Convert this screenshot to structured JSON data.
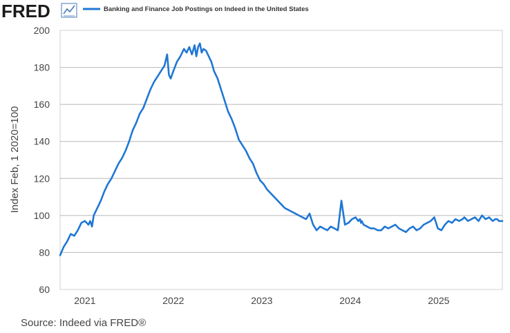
{
  "header": {
    "logo_text": "FRED",
    "logo_icon": "trend-line-icon",
    "legend_label": "Banking and Finance Job Postings on Indeed in the United States"
  },
  "footer": {
    "source": "Source: Indeed via FRED®"
  },
  "colors": {
    "series": "#1f77d4",
    "logo": "#1a1a1a",
    "grid": "#b8b8b8",
    "axis_text": "#444444",
    "plot_border": "#d0d0d0"
  },
  "chart_data": {
    "type": "line",
    "ylabel": "Index Feb, 1 2020=100",
    "ylim": [
      60,
      200
    ],
    "xlim": [
      2020.72,
      2025.72
    ],
    "y_ticks": [
      60,
      80,
      100,
      120,
      140,
      160,
      180,
      200
    ],
    "x_ticks": [
      {
        "value": 2021,
        "label": "2021"
      },
      {
        "value": 2022,
        "label": "2022"
      },
      {
        "value": 2023,
        "label": "2023"
      },
      {
        "value": 2024,
        "label": "2024"
      },
      {
        "value": 2025,
        "label": "2025"
      }
    ],
    "grid": true,
    "series": [
      {
        "name": "Banking and Finance Job Postings on Indeed in the United States",
        "x": [
          2020.72,
          2020.76,
          2020.8,
          2020.84,
          2020.88,
          2020.92,
          2020.96,
          2021.0,
          2021.04,
          2021.06,
          2021.08,
          2021.1,
          2021.14,
          2021.18,
          2021.22,
          2021.26,
          2021.3,
          2021.34,
          2021.38,
          2021.42,
          2021.46,
          2021.5,
          2021.54,
          2021.58,
          2021.62,
          2021.66,
          2021.7,
          2021.74,
          2021.78,
          2021.82,
          2021.86,
          2021.9,
          2021.93,
          2021.95,
          2021.97,
          2022.0,
          2022.04,
          2022.08,
          2022.12,
          2022.15,
          2022.18,
          2022.21,
          2022.24,
          2022.26,
          2022.28,
          2022.3,
          2022.32,
          2022.34,
          2022.37,
          2022.4,
          2022.43,
          2022.46,
          2022.5,
          2022.54,
          2022.58,
          2022.62,
          2022.66,
          2022.7,
          2022.74,
          2022.78,
          2022.82,
          2022.86,
          2022.9,
          2022.94,
          2022.98,
          2023.02,
          2023.06,
          2023.1,
          2023.14,
          2023.18,
          2023.22,
          2023.26,
          2023.3,
          2023.34,
          2023.38,
          2023.42,
          2023.46,
          2023.5,
          2023.54,
          2023.58,
          2023.62,
          2023.66,
          2023.7,
          2023.74,
          2023.78,
          2023.82,
          2023.86,
          2023.9,
          2023.94,
          2023.98,
          2024.02,
          2024.06,
          2024.09,
          2024.11,
          2024.12,
          2024.13,
          2024.15,
          2024.19,
          2024.23,
          2024.27,
          2024.31,
          2024.35,
          2024.39,
          2024.43,
          2024.47,
          2024.51,
          2024.55,
          2024.59,
          2024.63,
          2024.67,
          2024.71,
          2024.75,
          2024.79,
          2024.83,
          2024.87,
          2024.91,
          2024.95,
          2024.99,
          2025.03,
          2025.07,
          2025.11,
          2025.15,
          2025.19,
          2025.23,
          2025.27,
          2025.29,
          2025.31,
          2025.33,
          2025.37,
          2025.41,
          2025.45,
          2025.49,
          2025.53,
          2025.57,
          2025.61,
          2025.64,
          2025.66,
          2025.68,
          2025.72
        ],
        "values": [
          78.5,
          83,
          86,
          90,
          89,
          92,
          96,
          97,
          95,
          97,
          94,
          100,
          104,
          108,
          113,
          117,
          120,
          124,
          128,
          131,
          135,
          140,
          146,
          150,
          155,
          158,
          163,
          168,
          172,
          175,
          178,
          181,
          187,
          176,
          174,
          178,
          183,
          186,
          190,
          188,
          191,
          187,
          192,
          186,
          191,
          193,
          188,
          190,
          189,
          186,
          183,
          178,
          174,
          168,
          162,
          156,
          152,
          147,
          141,
          138,
          135,
          131,
          128,
          123,
          119,
          117,
          114,
          112,
          110,
          108,
          106,
          104,
          103,
          102,
          101,
          100,
          99,
          98,
          101,
          95,
          92,
          94,
          93,
          92,
          94,
          93,
          92,
          108,
          95,
          96,
          98,
          99,
          97,
          98,
          96,
          97,
          95,
          94,
          93,
          93,
          92,
          92,
          94,
          93,
          94,
          95,
          93,
          92,
          91,
          93,
          94,
          92,
          93,
          95,
          96,
          97,
          99,
          93,
          92,
          95,
          97,
          96,
          98,
          97,
          98,
          99,
          98,
          97,
          98,
          99,
          97,
          100,
          98,
          99,
          97,
          98,
          98,
          97,
          97
        ]
      }
    ]
  }
}
